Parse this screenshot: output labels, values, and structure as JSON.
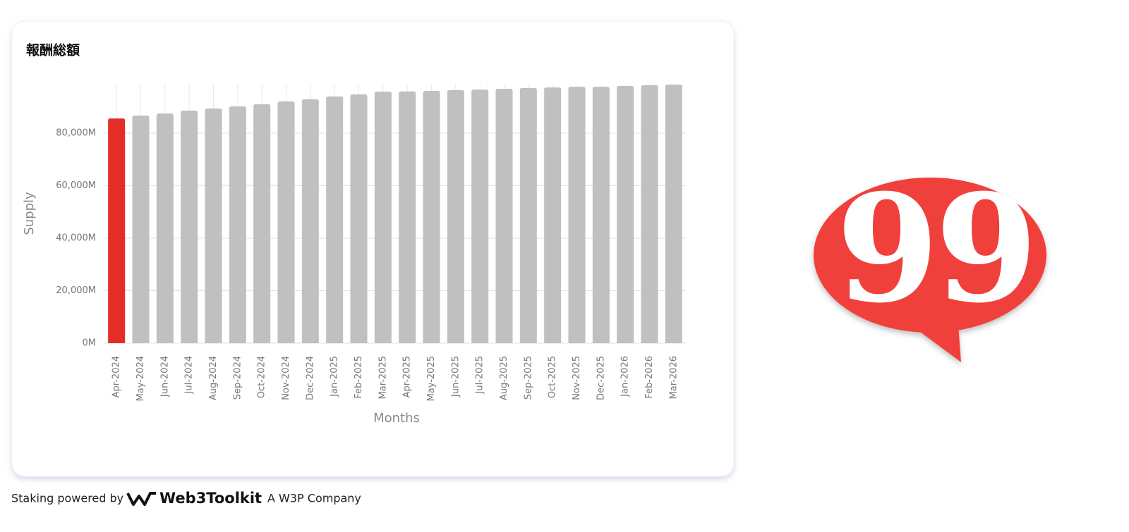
{
  "chart_data": {
    "type": "bar",
    "title": "報酬総額",
    "y_label": "Supply",
    "x_label": "Months",
    "categories": [
      "Apr-2024",
      "May-2024",
      "Jun-2024",
      "Jul-2024",
      "Aug-2024",
      "Sep-2024",
      "Oct-2024",
      "Nov-2024",
      "Dec-2024",
      "Jan-2025",
      "Feb-2025",
      "Mar-2025",
      "Apr-2025",
      "May-2025",
      "Jun-2025",
      "Jul-2025",
      "Aug-2025",
      "Sep-2025",
      "Oct-2025",
      "Nov-2025",
      "Dec-2025",
      "Jan-2026",
      "Feb-2026",
      "Mar-2026"
    ],
    "values": [
      85600,
      86700,
      87500,
      88600,
      89400,
      90200,
      91000,
      92100,
      92900,
      94000,
      94800,
      95800,
      95900,
      96100,
      96400,
      96600,
      96900,
      97200,
      97400,
      97700,
      97700,
      98000,
      98300,
      98500
    ],
    "colors": [
      "#e52d27",
      "#c0c0c0",
      "#c0c0c0",
      "#c0c0c0",
      "#c0c0c0",
      "#c0c0c0",
      "#c0c0c0",
      "#c0c0c0",
      "#c0c0c0",
      "#c0c0c0",
      "#c0c0c0",
      "#c0c0c0",
      "#c0c0c0",
      "#c0c0c0",
      "#c0c0c0",
      "#c0c0c0",
      "#c0c0c0",
      "#c0c0c0",
      "#c0c0c0",
      "#c0c0c0",
      "#c0c0c0",
      "#c0c0c0",
      "#c0c0c0",
      "#c0c0c0"
    ],
    "ylim": [
      0,
      100000
    ],
    "yticks": [
      {
        "value": 0,
        "label": "0M"
      },
      {
        "value": 20000,
        "label": "20,000M"
      },
      {
        "value": 40000,
        "label": "40,000M"
      },
      {
        "value": 60000,
        "label": "60,000M"
      },
      {
        "value": 80000,
        "label": "80,000M"
      }
    ],
    "grid": true
  },
  "footer": {
    "prefix": "Staking powered by",
    "brand": "Web3Toolkit",
    "suffix": "A W3P Company"
  },
  "logo": {
    "text": "99"
  }
}
